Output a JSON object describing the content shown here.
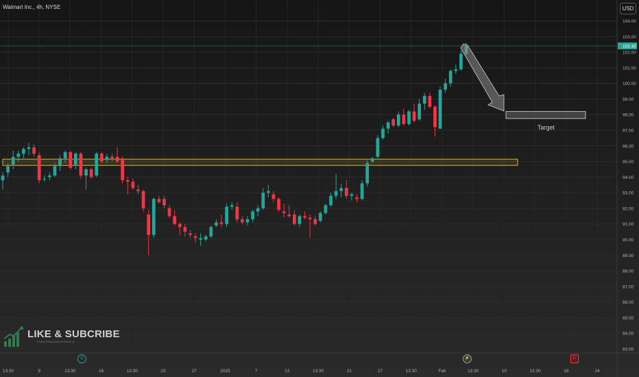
{
  "header": {
    "title": "Walmart Inc., 4h, NYSE",
    "currency_button": "USD"
  },
  "watermark": {
    "main": "LIKE & SUBCRIBE",
    "sub": "TOMSTRADINGSIGNALS"
  },
  "annotation": {
    "target_label": "Target"
  },
  "events": [
    {
      "icon": "dividend-icon",
      "glyph": "D",
      "color": "#26a69a"
    },
    {
      "icon": "earnings-bolt-icon",
      "glyph": "⚡",
      "color": "#9e9e9e"
    },
    {
      "icon": "earnings-icon",
      "glyph": "E",
      "color": "#f23645"
    }
  ],
  "colors": {
    "up": "#26a69a",
    "down": "#f23645",
    "background": "#1e1e1e",
    "zone": "#e6c441"
  },
  "chart_data": {
    "type": "candlestick",
    "title": "Walmart Inc., 4h, NYSE",
    "ylim": [
      83.0,
      104.0
    ],
    "y_ticks": [
      "104.00",
      "103.00",
      "102.00",
      "101.00",
      "100.00",
      "99.00",
      "98.00",
      "97.00",
      "96.00",
      "95.00",
      "94.00",
      "93.00",
      "92.00",
      "91.00",
      "90.00",
      "89.00",
      "88.00",
      "87.00",
      "86.00",
      "85.00",
      "84.00",
      "83.00"
    ],
    "last_price": "102.40",
    "x_labels": [
      "13:30",
      "9",
      "13:30",
      "16",
      "13:30",
      "23",
      "27",
      "2025",
      "7",
      "13",
      "13:30",
      "21",
      "27",
      "13:30",
      "Feb",
      "13:30",
      "10",
      "13:30",
      "18",
      "24"
    ],
    "zones": [
      {
        "name": "support-resistance-zone",
        "low": 94.75,
        "high": 95.15
      },
      {
        "name": "target-zone",
        "low": 97.75,
        "high": 98.2
      }
    ],
    "candles": [
      {
        "o": 93.8,
        "h": 94.3,
        "l": 93.2,
        "c": 94.1
      },
      {
        "o": 94.3,
        "h": 94.9,
        "l": 94.0,
        "c": 94.7
      },
      {
        "o": 94.8,
        "h": 95.7,
        "l": 94.5,
        "c": 95.3
      },
      {
        "o": 95.3,
        "h": 95.7,
        "l": 95.0,
        "c": 95.5
      },
      {
        "o": 95.5,
        "h": 95.9,
        "l": 95.2,
        "c": 95.8
      },
      {
        "o": 95.8,
        "h": 96.2,
        "l": 95.4,
        "c": 95.9
      },
      {
        "o": 95.9,
        "h": 96.1,
        "l": 95.3,
        "c": 95.5
      },
      {
        "o": 95.4,
        "h": 95.6,
        "l": 93.6,
        "c": 93.8
      },
      {
        "o": 93.9,
        "h": 94.1,
        "l": 93.7,
        "c": 93.9
      },
      {
        "o": 94.0,
        "h": 94.3,
        "l": 93.8,
        "c": 94.1
      },
      {
        "o": 94.1,
        "h": 94.9,
        "l": 94.0,
        "c": 94.7
      },
      {
        "o": 94.7,
        "h": 95.4,
        "l": 94.4,
        "c": 95.2
      },
      {
        "o": 95.2,
        "h": 95.7,
        "l": 94.9,
        "c": 95.6
      },
      {
        "o": 95.6,
        "h": 95.7,
        "l": 94.5,
        "c": 94.6
      },
      {
        "o": 94.8,
        "h": 95.6,
        "l": 94.5,
        "c": 95.5
      },
      {
        "o": 95.5,
        "h": 95.6,
        "l": 93.9,
        "c": 94.1
      },
      {
        "o": 94.1,
        "h": 94.6,
        "l": 93.2,
        "c": 94.5
      },
      {
        "o": 94.5,
        "h": 94.6,
        "l": 93.9,
        "c": 94.0
      },
      {
        "o": 94.1,
        "h": 95.6,
        "l": 94.0,
        "c": 95.5
      },
      {
        "o": 95.5,
        "h": 95.6,
        "l": 94.9,
        "c": 95.0
      },
      {
        "o": 95.1,
        "h": 95.5,
        "l": 94.9,
        "c": 95.3
      },
      {
        "o": 95.3,
        "h": 95.5,
        "l": 95.0,
        "c": 95.2
      },
      {
        "o": 95.3,
        "h": 95.9,
        "l": 94.9,
        "c": 95.0
      },
      {
        "o": 95.2,
        "h": 95.3,
        "l": 93.6,
        "c": 93.8
      },
      {
        "o": 93.8,
        "h": 94.0,
        "l": 92.9,
        "c": 93.7
      },
      {
        "o": 93.7,
        "h": 93.9,
        "l": 93.2,
        "c": 93.3
      },
      {
        "o": 93.2,
        "h": 93.5,
        "l": 92.9,
        "c": 93.1
      },
      {
        "o": 93.1,
        "h": 93.2,
        "l": 91.8,
        "c": 92.0
      },
      {
        "o": 91.6,
        "h": 91.9,
        "l": 89.0,
        "c": 90.3
      },
      {
        "o": 90.3,
        "h": 92.7,
        "l": 90.1,
        "c": 92.6
      },
      {
        "o": 92.6,
        "h": 92.8,
        "l": 92.3,
        "c": 92.4
      },
      {
        "o": 92.6,
        "h": 92.8,
        "l": 92.0,
        "c": 92.2
      },
      {
        "o": 92.0,
        "h": 92.2,
        "l": 91.4,
        "c": 91.5
      },
      {
        "o": 91.5,
        "h": 91.9,
        "l": 90.9,
        "c": 91.0
      },
      {
        "o": 91.0,
        "h": 91.1,
        "l": 90.3,
        "c": 90.8
      },
      {
        "o": 90.8,
        "h": 91.0,
        "l": 90.2,
        "c": 90.5
      },
      {
        "o": 90.4,
        "h": 90.6,
        "l": 90.1,
        "c": 90.3
      },
      {
        "o": 90.2,
        "h": 90.4,
        "l": 89.8,
        "c": 90.1
      },
      {
        "o": 90.0,
        "h": 90.4,
        "l": 89.6,
        "c": 90.1
      },
      {
        "o": 90.0,
        "h": 90.3,
        "l": 89.9,
        "c": 90.2
      },
      {
        "o": 90.2,
        "h": 90.9,
        "l": 90.1,
        "c": 90.8
      },
      {
        "o": 90.9,
        "h": 91.3,
        "l": 90.8,
        "c": 91.1
      },
      {
        "o": 91.1,
        "h": 91.6,
        "l": 90.8,
        "c": 91.0
      },
      {
        "o": 91.0,
        "h": 92.3,
        "l": 90.8,
        "c": 92.1
      },
      {
        "o": 92.1,
        "h": 92.4,
        "l": 91.9,
        "c": 92.2
      },
      {
        "o": 92.1,
        "h": 92.4,
        "l": 91.1,
        "c": 91.3
      },
      {
        "o": 91.3,
        "h": 91.5,
        "l": 91.0,
        "c": 91.1
      },
      {
        "o": 91.1,
        "h": 91.5,
        "l": 90.9,
        "c": 91.3
      },
      {
        "o": 91.3,
        "h": 91.9,
        "l": 91.1,
        "c": 91.8
      },
      {
        "o": 91.8,
        "h": 92.2,
        "l": 91.5,
        "c": 92.0
      },
      {
        "o": 92.0,
        "h": 93.3,
        "l": 91.9,
        "c": 93.0
      },
      {
        "o": 93.0,
        "h": 93.5,
        "l": 92.7,
        "c": 93.1
      },
      {
        "o": 92.9,
        "h": 93.1,
        "l": 92.4,
        "c": 92.6
      },
      {
        "o": 92.6,
        "h": 92.7,
        "l": 91.8,
        "c": 91.9
      },
      {
        "o": 91.8,
        "h": 92.3,
        "l": 91.4,
        "c": 91.7
      },
      {
        "o": 91.6,
        "h": 92.2,
        "l": 91.4,
        "c": 91.5
      },
      {
        "o": 91.6,
        "h": 91.9,
        "l": 90.9,
        "c": 91.0
      },
      {
        "o": 91.0,
        "h": 91.6,
        "l": 90.8,
        "c": 91.5
      },
      {
        "o": 91.5,
        "h": 91.8,
        "l": 91.3,
        "c": 91.4
      },
      {
        "o": 91.4,
        "h": 91.6,
        "l": 90.1,
        "c": 91.3
      },
      {
        "o": 91.3,
        "h": 91.5,
        "l": 90.9,
        "c": 91.0
      },
      {
        "o": 91.2,
        "h": 91.8,
        "l": 91.1,
        "c": 91.7
      },
      {
        "o": 91.7,
        "h": 92.3,
        "l": 91.6,
        "c": 92.2
      },
      {
        "o": 92.2,
        "h": 93.0,
        "l": 92.1,
        "c": 92.8
      },
      {
        "o": 92.8,
        "h": 94.2,
        "l": 92.6,
        "c": 93.1
      },
      {
        "o": 93.1,
        "h": 93.6,
        "l": 92.7,
        "c": 93.3
      },
      {
        "o": 93.3,
        "h": 93.8,
        "l": 92.6,
        "c": 92.8
      },
      {
        "o": 92.8,
        "h": 93.0,
        "l": 92.5,
        "c": 92.9
      },
      {
        "o": 92.7,
        "h": 92.9,
        "l": 92.4,
        "c": 92.6
      },
      {
        "o": 92.6,
        "h": 93.8,
        "l": 92.5,
        "c": 93.6
      },
      {
        "o": 93.6,
        "h": 95.1,
        "l": 93.4,
        "c": 94.9
      },
      {
        "o": 95.0,
        "h": 95.3,
        "l": 94.9,
        "c": 95.2
      },
      {
        "o": 95.3,
        "h": 96.7,
        "l": 95.2,
        "c": 96.5
      },
      {
        "o": 96.5,
        "h": 97.3,
        "l": 96.4,
        "c": 97.1
      },
      {
        "o": 97.1,
        "h": 97.6,
        "l": 96.8,
        "c": 97.5
      },
      {
        "o": 97.7,
        "h": 97.8,
        "l": 97.2,
        "c": 97.3
      },
      {
        "o": 97.3,
        "h": 98.2,
        "l": 97.2,
        "c": 98.0
      },
      {
        "o": 98.0,
        "h": 98.4,
        "l": 97.3,
        "c": 97.4
      },
      {
        "o": 97.4,
        "h": 98.3,
        "l": 97.3,
        "c": 98.2
      },
      {
        "o": 98.2,
        "h": 98.7,
        "l": 97.5,
        "c": 97.6
      },
      {
        "o": 97.7,
        "h": 99.0,
        "l": 97.6,
        "c": 98.7
      },
      {
        "o": 98.7,
        "h": 99.4,
        "l": 98.3,
        "c": 99.2
      },
      {
        "o": 99.2,
        "h": 99.4,
        "l": 98.4,
        "c": 98.5
      },
      {
        "o": 98.5,
        "h": 98.6,
        "l": 96.6,
        "c": 97.2
      },
      {
        "o": 97.1,
        "h": 99.8,
        "l": 97.1,
        "c": 99.6
      },
      {
        "o": 99.6,
        "h": 100.3,
        "l": 99.4,
        "c": 100.0
      },
      {
        "o": 100.0,
        "h": 100.9,
        "l": 99.8,
        "c": 100.8
      },
      {
        "o": 100.8,
        "h": 101.2,
        "l": 100.6,
        "c": 100.9
      },
      {
        "o": 100.9,
        "h": 102.1,
        "l": 100.8,
        "c": 101.9
      },
      {
        "o": 101.9,
        "h": 102.6,
        "l": 101.8,
        "c": 102.4
      }
    ]
  }
}
